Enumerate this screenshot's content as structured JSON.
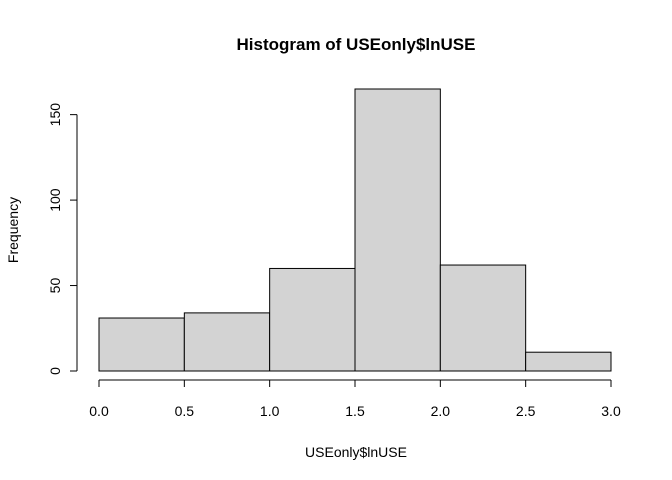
{
  "chart_data": {
    "type": "bar",
    "title": "Histogram of USEonly$lnUSE",
    "xlabel": "USEonly$lnUSE",
    "ylabel": "Frequency",
    "bins": [
      {
        "start": 0.0,
        "end": 0.5,
        "count": 31
      },
      {
        "start": 0.5,
        "end": 1.0,
        "count": 34
      },
      {
        "start": 1.0,
        "end": 1.5,
        "count": 60
      },
      {
        "start": 1.5,
        "end": 2.0,
        "count": 165
      },
      {
        "start": 2.0,
        "end": 2.5,
        "count": 62
      },
      {
        "start": 2.5,
        "end": 3.0,
        "count": 11
      }
    ],
    "xlim": [
      0,
      3
    ],
    "ylim": [
      0,
      165
    ],
    "x_ticks": [
      "0.0",
      "0.5",
      "1.0",
      "1.5",
      "2.0",
      "2.5",
      "3.0"
    ],
    "y_ticks": [
      "0",
      "50",
      "100",
      "150"
    ],
    "bar_color": "#d3d3d3",
    "grid": false,
    "legend": "none"
  }
}
